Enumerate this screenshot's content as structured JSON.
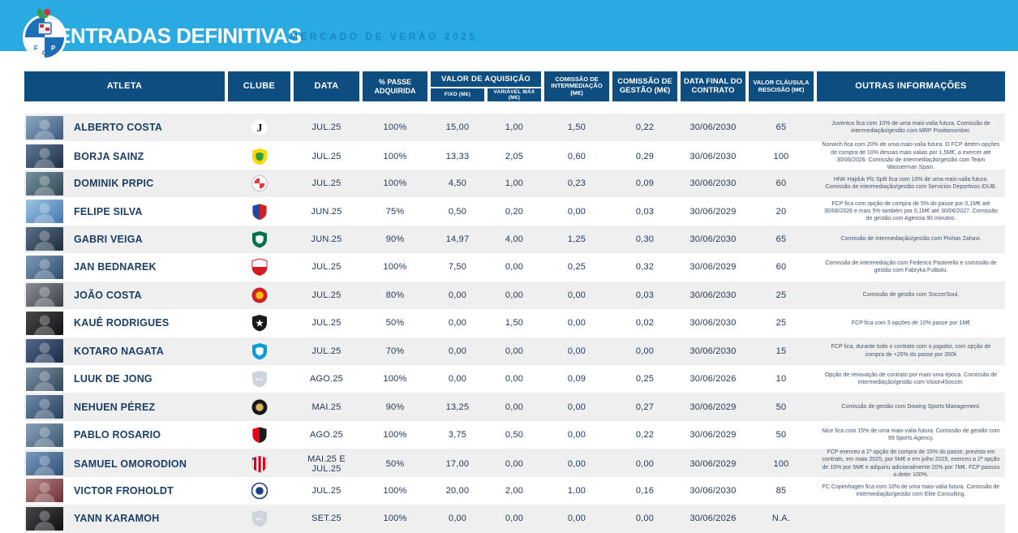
{
  "header": {
    "title": "ENTRADAS DEFINITIVAS",
    "subtitle": "MERCADO DE VERÃO 2025",
    "crest_name": "fc-porto-crest",
    "banner_color": "#29abe2",
    "header_box_color": "#0d4d80"
  },
  "columns": {
    "atleta": "ATLETA",
    "clube": "CLUBE",
    "data": "DATA",
    "passe": "% PASSE ADQUIRIDA",
    "valor_grupo": "VALOR DE AQUISIÇÃO",
    "fixo": "FIXO (M€)",
    "variavel": "VARIÁVEL MÁX (M€)",
    "comissao_intermediacao": "COMISSÃO DE INTERMEDIAÇÃO (M€)",
    "comissao_gestao": "COMISSÃO DE GESTÃO (M€)",
    "data_final": "DATA FINAL DO CONTRATO",
    "valor_clausula": "VALOR CLÁUSULA RESCISÃO (M€)",
    "outras": "OUTRAS INFORMAÇÕES"
  },
  "rows": [
    {
      "atleta": "ALBERTO COSTA",
      "logo": {
        "icon": "juventus-crest",
        "kind": "glyph",
        "glyph": "J",
        "fg": "#141414",
        "bg": "#ffffff"
      },
      "data": "JUL.25",
      "passe": "100%",
      "fixo": "15,00",
      "variavel": "1,00",
      "com_int": "1,50",
      "com_gestao": "0,22",
      "data_final": "30/06/2030",
      "clausula": "65",
      "outras": "Juventus fica com 10% de uma mais-valia futura. Comissão de intermediação/gestão com MRP Positionumber.",
      "photo": [
        "#8fa7bf",
        "#3a5a82"
      ]
    },
    {
      "atleta": "BORJA SAINZ",
      "logo": {
        "icon": "norwich-crest",
        "kind": "shield",
        "c1": "#ffd900",
        "inner": "#2e9e46"
      },
      "data": "JUL.25",
      "passe": "100%",
      "fixo": "13,33",
      "variavel": "2,05",
      "com_int": "0,60",
      "com_gestao": "0,29",
      "data_final": "30/06/2030",
      "clausula": "100",
      "outras": "Norwich fica com 20% de uma mais-valia futura. O FCP detém opções de compra de 10% dessas mais valias por 1,5M€, a exercer até 30/06/2026. Comissão de intermediação/gestão com Team Wasserman Spain.",
      "photo": [
        "#5d7894",
        "#1f3046"
      ]
    },
    {
      "atleta": "DOMINIK PRPIC",
      "logo": {
        "icon": "hajduk-split-crest",
        "kind": "checker-circle",
        "c1": "#ffffff",
        "c2": "#e03a3e",
        "ring": "#b9c2cc"
      },
      "data": "JUL.25",
      "passe": "100%",
      "fixo": "4,50",
      "variavel": "1,00",
      "com_int": "0,23",
      "com_gestao": "0,09",
      "data_final": "30/06/2030",
      "clausula": "60",
      "outras": "HNK Hajduk Plc Split fica com 10% de uma mais-valia futura. Comissão de intermediação/gestão com Servicios Deportivos IDUB.",
      "photo": [
        "#7792a0",
        "#2f4a55"
      ]
    },
    {
      "atleta": "FELIPE SILVA",
      "logo": {
        "icon": "trencin-crest",
        "kind": "shield-v",
        "c1": "#23479f",
        "c2": "#d21f26"
      },
      "data": "JUN.25",
      "passe": "75%",
      "fixo": "0,50",
      "variavel": "0,20",
      "com_int": "0,00",
      "com_gestao": "0,03",
      "data_final": "30/06/2029",
      "clausula": "20",
      "outras": "FCP fica com opção de compra de 5% do passe por 0,1M€ até 30/06/2026 e mais 5% também por 0,1M€ até 30/06/2027. Comissão de gestão com Agencia 90 minutos.",
      "photo": [
        "#9cc4e4",
        "#4478ad"
      ]
    },
    {
      "atleta": "GABRI VEIGA",
      "logo": {
        "icon": "al-ahli-crest",
        "kind": "shield",
        "c1": "#00734a",
        "inner": "#ffffff"
      },
      "data": "JUN.25",
      "passe": "90%",
      "fixo": "14,97",
      "variavel": "4,00",
      "com_int": "1,25",
      "com_gestao": "0,30",
      "data_final": "30/06/2030",
      "clausula": "65",
      "outras": "Comissão de intermediação/gestão com Pinhas Zahavi.",
      "photo": [
        "#5a6f86",
        "#1d2d40"
      ]
    },
    {
      "atleta": "JAN BEDNAREK",
      "logo": {
        "icon": "southampton-crest",
        "kind": "shield-h",
        "c1": "#ffffff",
        "c2": "#d71920"
      },
      "data": "JUL.25",
      "passe": "100%",
      "fixo": "7,50",
      "variavel": "0,00",
      "com_int": "0,25",
      "com_gestao": "0,32",
      "data_final": "30/06/2029",
      "clausula": "60",
      "outras": "Comissão de intermediação com Federico Pastorello e comissão de gestão com Fabryka Futbolu.",
      "photo": [
        "#7d9ab8",
        "#2f4d6e"
      ]
    },
    {
      "atleta": "JOÃO COSTA",
      "logo": {
        "icon": "estrela-amadora-crest",
        "kind": "circle",
        "c1": "#d12127",
        "inner": "#f2c200"
      },
      "data": "JUL.25",
      "passe": "80%",
      "fixo": "0,00",
      "variavel": "0,00",
      "com_int": "0,00",
      "com_gestao": "0,03",
      "data_final": "30/06/2030",
      "clausula": "25",
      "outras": "Comissão de gestão com SoccerSoul.",
      "photo": [
        "#8a8f96",
        "#3c4148"
      ]
    },
    {
      "atleta": "KAUÊ RODRIGUES",
      "logo": {
        "icon": "botafogo-crest",
        "kind": "glyph-shield",
        "c1": "#17181a",
        "glyph": "★",
        "fg": "#ffffff",
        "gs": "11"
      },
      "data": "JUL.25",
      "passe": "50%",
      "fixo": "0,00",
      "variavel": "1,50",
      "com_int": "0,00",
      "com_gestao": "0,02",
      "data_final": "30/06/2030",
      "clausula": "25",
      "outras": "FCP fica com 3 opções de 10% passe por 1M€",
      "photo": [
        "#4a4a4e",
        "#121214"
      ]
    },
    {
      "atleta": "KOTARO NAGATA",
      "logo": {
        "icon": "yokohama-fc-crest",
        "kind": "shield",
        "c1": "#0a9bdb",
        "inner": "#ffffff"
      },
      "data": "JUL.25",
      "passe": "70%",
      "fixo": "0,00",
      "variavel": "0,00",
      "com_int": "0,00",
      "com_gestao": "0,00",
      "data_final": "30/06/2030",
      "clausula": "15",
      "outras": "FCP fica, durante todo o contrato com o jogador, com opção de compra de +20% do passe por 350k",
      "photo": [
        "#53688c",
        "#1b2a48"
      ]
    },
    {
      "atleta": "LUUK DE JONG",
      "logo": {
        "icon": "na-crest",
        "kind": "glyph-shield",
        "c1": "#ccd3da",
        "glyph": "N.A.",
        "fg": "#ffffff",
        "gs": "4.5"
      },
      "data": "AGO.25",
      "passe": "100%",
      "fixo": "0,00",
      "variavel": "0,00",
      "com_int": "0,09",
      "com_gestao": "0,25",
      "data_final": "30/06/2026",
      "clausula": "10",
      "outras": "Opção de renovação de contrato por mais uma época. Comissão de intermediação/gestão com Vision4Soccer.",
      "photo": [
        "#7f93a6",
        "#33475a"
      ]
    },
    {
      "atleta": "NEHUEN PÉREZ",
      "logo": {
        "icon": "udinese-crest",
        "kind": "circle",
        "c1": "#17181a",
        "inner": "#d9b65c"
      },
      "data": "MAI.25",
      "passe": "90%",
      "fixo": "13,25",
      "variavel": "0,00",
      "com_int": "0,00",
      "com_gestao": "0,27",
      "data_final": "30/06/2029",
      "clausula": "50",
      "outras": "Comissão de gestão com Dowing Sports Management.",
      "photo": [
        "#6d89a8",
        "#27425f"
      ]
    },
    {
      "atleta": "PABLO ROSARIO",
      "logo": {
        "icon": "nice-crest",
        "kind": "shield-v",
        "c1": "#e30613",
        "c2": "#1a1a1a"
      },
      "data": "AGO.25",
      "passe": "100%",
      "fixo": "3,75",
      "variavel": "0,50",
      "com_int": "0,00",
      "com_gestao": "0,22",
      "data_final": "30/06/2029",
      "clausula": "50",
      "outras": "Nice fica com 15% de uma mais-valia futura. Comissão de gestão com 99 Sports Agency.",
      "photo": [
        "#8aa3bd",
        "#3a566f"
      ]
    },
    {
      "atleta": "SAMUEL OMORODION",
      "logo": {
        "icon": "atletico-madrid-crest",
        "kind": "stripes-shield",
        "c1": "#ffffff",
        "c2": "#d6001c",
        "c3": "#28408f"
      },
      "data": "MAI.25 E JUL.25",
      "passe": "50%",
      "fixo": "17,00",
      "variavel": "0,00",
      "com_int": "0,00",
      "com_gestao": "0,00",
      "data_final": "30/06/2029",
      "clausula": "100",
      "outras": "FCP exerceu a 1ª opção de compra de 15% do passe, prevista em contrato, em maio 2025, por 5M€ e em julho 2025, exerceu a 2ª opção de 15% por 5M€ e adquiriu adicionalmente 20% por 7M€. FCP passou a deter 100%.",
      "photo": [
        "#7c9cc0",
        "#2e4f74"
      ]
    },
    {
      "atleta": "VICTOR FROHOLDT",
      "logo": {
        "icon": "copenhagen-crest",
        "kind": "circle",
        "c1": "#ffffff",
        "ring": "#1d3c85",
        "inner": "#1d3c85"
      },
      "data": "JUL.25",
      "passe": "100%",
      "fixo": "20,00",
      "variavel": "2,00",
      "com_int": "1,00",
      "com_gestao": "0,16",
      "data_final": "30/06/2030",
      "clausula": "85",
      "outras": "FC Copenhagen fica com 10% de uma mais-valia futura. Comissão de intermediação/gestão com Elite Consulting.",
      "photo": [
        "#b98a8a",
        "#6e2f34"
      ]
    },
    {
      "atleta": "YANN KARAMOH",
      "logo": {
        "icon": "na-crest",
        "kind": "glyph-shield",
        "c1": "#ccd3da",
        "glyph": "N.A.",
        "fg": "#ffffff",
        "gs": "4.5"
      },
      "data": "SET.25",
      "passe": "100%",
      "fixo": "0,00",
      "variavel": "0,00",
      "com_int": "0,00",
      "com_gestao": "0,00",
      "data_final": "30/06/2026",
      "clausula": "N.A.",
      "outras": "",
      "photo": [
        "#45464a",
        "#101113"
      ]
    }
  ]
}
